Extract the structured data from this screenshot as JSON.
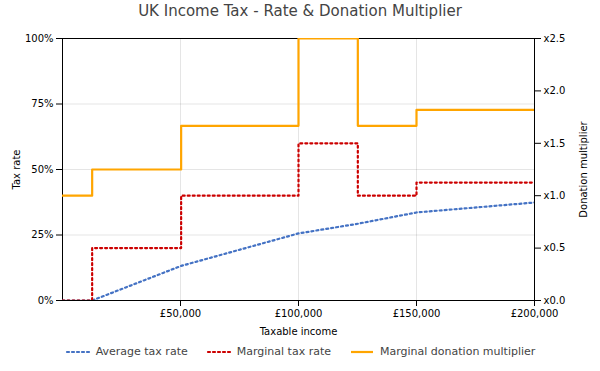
{
  "chart_data": {
    "type": "line",
    "title": "UK Income Tax - Rate & Donation Multiplier",
    "x_label": "Taxable income",
    "y_label": "Tax rate",
    "y2_label": "Donation multiplier",
    "xlim": [
      0,
      200000
    ],
    "xticks": [
      {
        "value": 50000,
        "label": "£50,000"
      },
      {
        "value": 100000,
        "label": "£100,000"
      },
      {
        "value": 150000,
        "label": "£150,000"
      },
      {
        "value": 200000,
        "label": "£200,000"
      }
    ],
    "ylim": [
      0,
      1.0
    ],
    "yticks": [
      {
        "value": 0.0,
        "label": "0%"
      },
      {
        "value": 0.25,
        "label": "25%"
      },
      {
        "value": 0.5,
        "label": "50%"
      },
      {
        "value": 0.75,
        "label": "75%"
      },
      {
        "value": 1.0,
        "label": "100%"
      }
    ],
    "y2lim": [
      0.0,
      2.5
    ],
    "y2ticks": [
      {
        "value": 0.0,
        "label": "x0.0"
      },
      {
        "value": 0.5,
        "label": "x0.5"
      },
      {
        "value": 1.0,
        "label": "x1.0"
      },
      {
        "value": 1.5,
        "label": "x1.5"
      },
      {
        "value": 2.0,
        "label": "x2.0"
      },
      {
        "value": 2.5,
        "label": "x2.5"
      }
    ],
    "grid": true,
    "legend": "bottom",
    "series": [
      {
        "name": "Average tax rate",
        "color": "#4472c4",
        "line_style": "dotted",
        "x": [
          0,
          12570,
          12570,
          50270,
          100000,
          125140,
          150000,
          200000
        ],
        "values": [
          0.0,
          0.0,
          0.0,
          0.132,
          0.256,
          0.293,
          0.336,
          0.374
        ]
      },
      {
        "name": "Marginal tax rate",
        "color": "#cc0000",
        "line_style": "dotted",
        "x": [
          0,
          12570,
          12570,
          50270,
          50270,
          100000,
          100000,
          125140,
          125140,
          150000,
          150000,
          200000
        ],
        "values": [
          0.0,
          0.0,
          0.2,
          0.2,
          0.4,
          0.4,
          0.6,
          0.6,
          0.4,
          0.4,
          0.45,
          0.45
        ]
      },
      {
        "name": "Marginal donation multiplier",
        "color": "#ffa500",
        "line_style": "solid",
        "axis": "y2",
        "x": [
          0,
          12570,
          12570,
          50270,
          50270,
          100000,
          100000,
          125140,
          125140,
          150000,
          150000,
          200000
        ],
        "values": [
          1.0,
          1.0,
          1.25,
          1.25,
          1.667,
          1.667,
          2.5,
          2.5,
          1.667,
          1.667,
          1.818,
          1.818
        ]
      }
    ]
  }
}
